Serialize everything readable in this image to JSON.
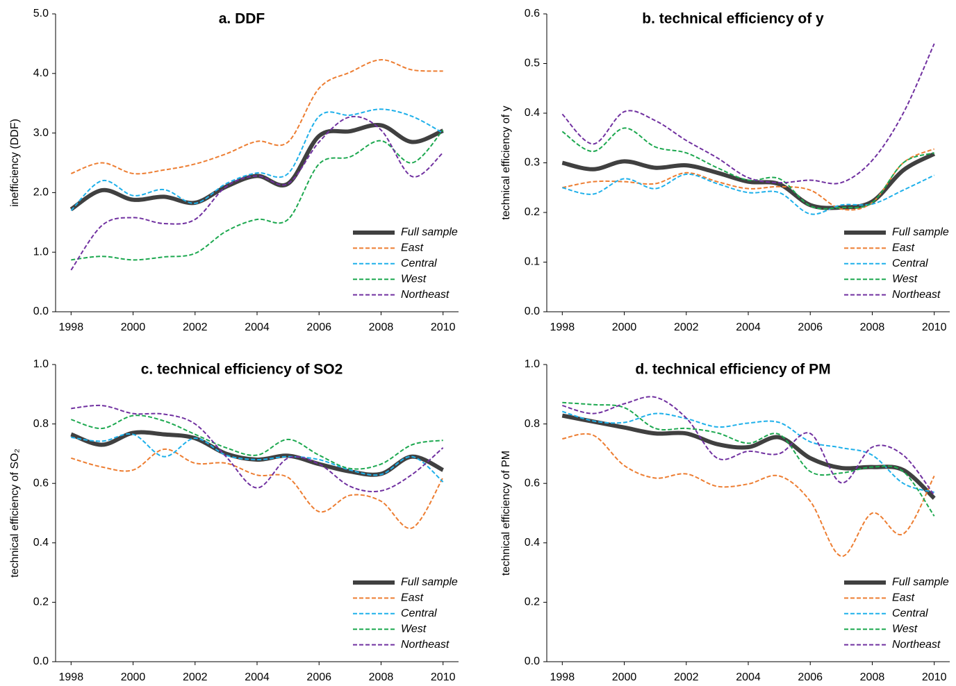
{
  "chart_data": [
    {
      "type": "line",
      "title": "a. DDF",
      "y_label": "inefficiency (DDF)",
      "x": [
        1998,
        1999,
        2000,
        2001,
        2002,
        2003,
        2004,
        2005,
        2006,
        2007,
        2008,
        2009,
        2010
      ],
      "xlim": [
        1997.5,
        2010.5
      ],
      "xticks": [
        1998,
        2000,
        2002,
        2004,
        2006,
        2008,
        2010
      ],
      "ylim": [
        0,
        5
      ],
      "yticks": [
        {
          "value": 0,
          "label": "0.0"
        },
        {
          "value": 1,
          "label": "1.0"
        },
        {
          "value": 2,
          "label": "2.0"
        },
        {
          "value": 3,
          "label": "3.0"
        },
        {
          "value": 4,
          "label": "4.0"
        },
        {
          "value": 5,
          "label": "5.0"
        }
      ],
      "legend": "lower right",
      "series": [
        {
          "name": "Full sample",
          "color": "#404040",
          "values": [
            1.72,
            2.04,
            1.88,
            1.93,
            1.83,
            2.1,
            2.28,
            2.15,
            2.95,
            3.03,
            3.13,
            2.85,
            3.04
          ]
        },
        {
          "name": "East",
          "color": "#ed7d31",
          "values": [
            2.32,
            2.5,
            2.32,
            2.38,
            2.48,
            2.65,
            2.86,
            2.85,
            3.75,
            4.02,
            4.23,
            4.06,
            4.04
          ]
        },
        {
          "name": "Central",
          "color": "#1eb0ea",
          "values": [
            1.7,
            2.2,
            1.95,
            2.05,
            1.82,
            2.15,
            2.33,
            2.32,
            3.28,
            3.3,
            3.4,
            3.28,
            3.0
          ]
        },
        {
          "name": "West",
          "color": "#1ca84f",
          "values": [
            0.87,
            0.93,
            0.87,
            0.92,
            0.98,
            1.35,
            1.55,
            1.55,
            2.48,
            2.6,
            2.87,
            2.5,
            3.05
          ]
        },
        {
          "name": "Northeast",
          "color": "#7030a0",
          "values": [
            0.7,
            1.45,
            1.58,
            1.48,
            1.55,
            2.1,
            2.28,
            2.15,
            2.85,
            3.27,
            3.05,
            2.27,
            2.67
          ]
        }
      ]
    },
    {
      "type": "line",
      "title": "b. technical efficiency of y",
      "y_label": "technical efficiency of y",
      "x": [
        1998,
        1999,
        2000,
        2001,
        2002,
        2003,
        2004,
        2005,
        2006,
        2007,
        2008,
        2009,
        2010
      ],
      "xlim": [
        1997.5,
        2010.5
      ],
      "xticks": [
        1998,
        2000,
        2002,
        2004,
        2006,
        2008,
        2010
      ],
      "ylim": [
        0,
        0.6
      ],
      "yticks": [
        {
          "value": 0,
          "label": "0.0"
        },
        0.1,
        0.2,
        0.3,
        0.4,
        0.5,
        0.6
      ],
      "legend": "lower right",
      "series": [
        {
          "name": "Full sample",
          "color": "#404040",
          "values": [
            0.3,
            0.287,
            0.303,
            0.29,
            0.295,
            0.28,
            0.262,
            0.257,
            0.215,
            0.21,
            0.222,
            0.285,
            0.318
          ]
        },
        {
          "name": "East",
          "color": "#ed7d31",
          "values": [
            0.25,
            0.262,
            0.262,
            0.258,
            0.28,
            0.262,
            0.248,
            0.252,
            0.245,
            0.207,
            0.22,
            0.3,
            0.328
          ]
        },
        {
          "name": "Central",
          "color": "#1eb0ea",
          "values": [
            0.25,
            0.237,
            0.268,
            0.248,
            0.277,
            0.258,
            0.24,
            0.24,
            0.197,
            0.215,
            0.217,
            0.245,
            0.275
          ]
        },
        {
          "name": "West",
          "color": "#1ca84f",
          "values": [
            0.363,
            0.323,
            0.37,
            0.332,
            0.32,
            0.29,
            0.265,
            0.268,
            0.213,
            0.21,
            0.22,
            0.3,
            0.32
          ]
        },
        {
          "name": "Northeast",
          "color": "#7030a0",
          "values": [
            0.398,
            0.338,
            0.403,
            0.385,
            0.345,
            0.31,
            0.27,
            0.26,
            0.265,
            0.26,
            0.305,
            0.4,
            0.54
          ]
        }
      ]
    },
    {
      "type": "line",
      "title": "c. technical efficiency of SO2",
      "y_label": "technical efficiency of SO₂",
      "x": [
        1998,
        1999,
        2000,
        2001,
        2002,
        2003,
        2004,
        2005,
        2006,
        2007,
        2008,
        2009,
        2010
      ],
      "xlim": [
        1997.5,
        2010.5
      ],
      "xticks": [
        1998,
        2000,
        2002,
        2004,
        2006,
        2008,
        2010
      ],
      "ylim": [
        0,
        1
      ],
      "yticks": [
        {
          "value": 0,
          "label": "0.0"
        },
        0.2,
        0.4,
        0.6,
        0.8,
        {
          "value": 1,
          "label": "1.0"
        }
      ],
      "legend": "lower right",
      "series": [
        {
          "name": "Full sample",
          "color": "#404040",
          "values": [
            0.765,
            0.73,
            0.77,
            0.765,
            0.752,
            0.7,
            0.68,
            0.693,
            0.665,
            0.64,
            0.632,
            0.69,
            0.645
          ]
        },
        {
          "name": "East",
          "color": "#ed7d31",
          "values": [
            0.685,
            0.655,
            0.645,
            0.715,
            0.668,
            0.668,
            0.628,
            0.62,
            0.505,
            0.56,
            0.54,
            0.45,
            0.62
          ]
        },
        {
          "name": "Central",
          "color": "#1eb0ea",
          "values": [
            0.755,
            0.742,
            0.765,
            0.69,
            0.752,
            0.695,
            0.68,
            0.69,
            0.68,
            0.645,
            0.63,
            0.69,
            0.605
          ]
        },
        {
          "name": "West",
          "color": "#1ca84f",
          "values": [
            0.815,
            0.785,
            0.828,
            0.81,
            0.765,
            0.72,
            0.695,
            0.748,
            0.695,
            0.65,
            0.665,
            0.73,
            0.745
          ]
        },
        {
          "name": "Northeast",
          "color": "#7030a0",
          "values": [
            0.852,
            0.862,
            0.835,
            0.833,
            0.8,
            0.69,
            0.585,
            0.685,
            0.665,
            0.59,
            0.575,
            0.63,
            0.72
          ]
        }
      ]
    },
    {
      "type": "line",
      "title": "d. technical efficiency of PM",
      "y_label": "technical efficiency of PM",
      "x": [
        1998,
        1999,
        2000,
        2001,
        2002,
        2003,
        2004,
        2005,
        2006,
        2007,
        2008,
        2009,
        2010
      ],
      "xlim": [
        1997.5,
        2010.5
      ],
      "xticks": [
        1998,
        2000,
        2002,
        2004,
        2006,
        2008,
        2010
      ],
      "ylim": [
        0,
        1
      ],
      "yticks": [
        {
          "value": 0,
          "label": "0.0"
        },
        0.2,
        0.4,
        0.6,
        0.8,
        {
          "value": 1,
          "label": "1.0"
        }
      ],
      "legend": "lower right",
      "series": [
        {
          "name": "Full sample",
          "color": "#404040",
          "values": [
            0.828,
            0.808,
            0.788,
            0.768,
            0.768,
            0.732,
            0.722,
            0.755,
            0.685,
            0.652,
            0.655,
            0.645,
            0.55
          ]
        },
        {
          "name": "East",
          "color": "#ed7d31",
          "values": [
            0.75,
            0.762,
            0.66,
            0.618,
            0.632,
            0.59,
            0.598,
            0.625,
            0.54,
            0.355,
            0.5,
            0.43,
            0.625
          ]
        },
        {
          "name": "Central",
          "color": "#1eb0ea",
          "values": [
            0.842,
            0.81,
            0.805,
            0.835,
            0.818,
            0.79,
            0.803,
            0.805,
            0.74,
            0.72,
            0.695,
            0.6,
            0.57
          ]
        },
        {
          "name": "West",
          "color": "#1ca84f",
          "values": [
            0.872,
            0.865,
            0.855,
            0.785,
            0.785,
            0.77,
            0.735,
            0.765,
            0.64,
            0.635,
            0.655,
            0.64,
            0.49
          ]
        },
        {
          "name": "Northeast",
          "color": "#7030a0",
          "values": [
            0.862,
            0.835,
            0.868,
            0.89,
            0.82,
            0.685,
            0.708,
            0.7,
            0.768,
            0.602,
            0.722,
            0.695,
            0.56
          ]
        }
      ]
    }
  ]
}
